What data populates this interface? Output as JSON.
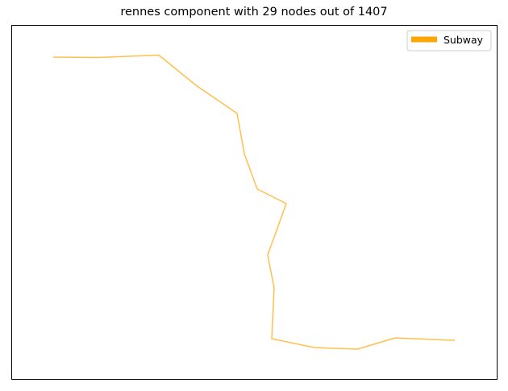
{
  "chart_data": {
    "type": "line",
    "title": "rennes component with 29 nodes out of 1407",
    "xlabel": "",
    "ylabel": "",
    "axes_ticks": "none",
    "grid": false,
    "legend_position": "top-right",
    "series": [
      {
        "name": "Subway",
        "color": "#FFA500",
        "line_alpha": 0.7,
        "points": [
          [
            66,
            71
          ],
          [
            120,
            71.5
          ],
          [
            197,
            68.5
          ],
          [
            243,
            106
          ],
          [
            294,
            141
          ],
          [
            303,
            191
          ],
          [
            319,
            235
          ],
          [
            355,
            253
          ],
          [
            332,
            317
          ],
          [
            340,
            358
          ],
          [
            337,
            421
          ],
          [
            390,
            432
          ],
          [
            443,
            434
          ],
          [
            490,
            420
          ],
          [
            564,
            423
          ]
        ]
      }
    ],
    "xlim": [
      14,
      616
    ],
    "ylim": [
      471,
      31
    ]
  }
}
